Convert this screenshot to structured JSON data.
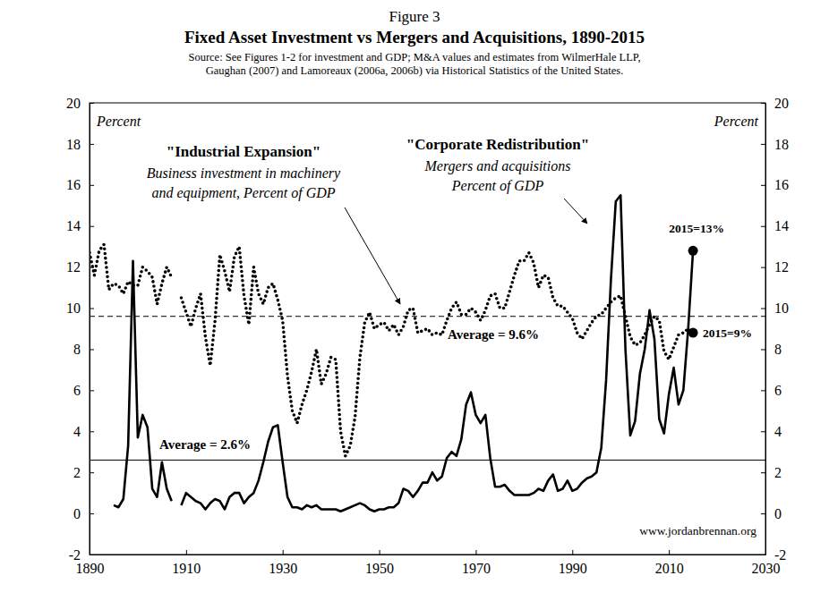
{
  "chart_data": {
    "type": "line",
    "figure": "Figure 3",
    "title": "Fixed Asset Investment vs Mergers and Acquisitions, 1890-2015",
    "source": [
      "Source: See Figures 1-2 for investment and GDP; M&A values and estimates from WilmerHale LLP,",
      "Gaughan (2007) and Lamoreaux (2006a, 2006b) via Historical Statistics of the United States."
    ],
    "y_label": "Percent",
    "y2_label": "Percent",
    "credit": "www.jordanbrennan.org",
    "annotations": [
      {
        "title": "\"Industrial Expansion\"",
        "lines": [
          "Business investment in machinery",
          "and equipment, Percent of GDP"
        ]
      },
      {
        "title": "\"Corporate Redistribution\"",
        "lines": [
          "Mergers and acquisitions",
          "Percent of GDP"
        ]
      }
    ],
    "xlim": [
      1890,
      2030
    ],
    "xticks": [
      1890,
      1910,
      1930,
      1950,
      1970,
      1990,
      2010,
      2030
    ],
    "ylim": [
      -2,
      20
    ],
    "yticks": [
      -2,
      0,
      2,
      4,
      6,
      8,
      10,
      12,
      14,
      16,
      18,
      20
    ],
    "y2lim": [
      -2,
      20
    ],
    "y2ticks": [
      -2,
      0,
      2,
      4,
      6,
      8,
      10,
      12,
      14,
      16,
      18,
      20
    ],
    "grid": false,
    "x": [
      1890,
      1891,
      1892,
      1893,
      1894,
      1895,
      1896,
      1897,
      1898,
      1899,
      1900,
      1901,
      1902,
      1903,
      1904,
      1905,
      1906,
      1907,
      1908,
      1909,
      1910,
      1911,
      1912,
      1913,
      1914,
      1915,
      1916,
      1917,
      1918,
      1919,
      1920,
      1921,
      1922,
      1923,
      1924,
      1925,
      1926,
      1927,
      1928,
      1929,
      1930,
      1931,
      1932,
      1933,
      1934,
      1935,
      1936,
      1937,
      1938,
      1939,
      1940,
      1941,
      1942,
      1943,
      1944,
      1945,
      1946,
      1947,
      1948,
      1949,
      1950,
      1951,
      1952,
      1953,
      1954,
      1955,
      1956,
      1957,
      1958,
      1959,
      1960,
      1961,
      1962,
      1963,
      1964,
      1965,
      1966,
      1967,
      1968,
      1969,
      1970,
      1971,
      1972,
      1973,
      1974,
      1975,
      1976,
      1977,
      1978,
      1979,
      1980,
      1981,
      1982,
      1983,
      1984,
      1985,
      1986,
      1987,
      1988,
      1989,
      1990,
      1991,
      1992,
      1993,
      1994,
      1995,
      1996,
      1997,
      1998,
      1999,
      2000,
      2001,
      2002,
      2003,
      2004,
      2005,
      2006,
      2007,
      2008,
      2009,
      2010,
      2011,
      2012,
      2013,
      2014,
      2015
    ],
    "series": [
      {
        "name": "Business investment in machinery and equipment",
        "color": "#000000",
        "line_style": "dotted",
        "average": 9.6,
        "average_label": "Average = 9.6%",
        "end_label": "2015=9%",
        "values": [
          12.7,
          11.6,
          12.8,
          13.1,
          10.9,
          11.2,
          11.1,
          10.7,
          11.3,
          11.1,
          11.1,
          12.0,
          11.8,
          11.5,
          10.2,
          11.2,
          12.0,
          11.5,
          null,
          10.5,
          9.8,
          9.1,
          10.0,
          10.7,
          8.6,
          7.2,
          9.4,
          12.6,
          11.8,
          10.8,
          12.5,
          13.0,
          10.6,
          9.2,
          12.0,
          10.7,
          10.2,
          11.0,
          11.2,
          10.4,
          9.4,
          6.7,
          5.0,
          4.4,
          5.3,
          6.0,
          6.9,
          8.0,
          6.3,
          6.8,
          7.6,
          7.5,
          4.0,
          2.8,
          3.3,
          4.7,
          7.6,
          9.3,
          9.8,
          9.0,
          9.2,
          9.3,
          8.9,
          9.2,
          8.7,
          9.1,
          9.9,
          10.0,
          8.8,
          8.9,
          9.0,
          8.7,
          8.8,
          8.7,
          9.4,
          10.0,
          10.3,
          9.7,
          9.7,
          10.0,
          9.8,
          9.4,
          9.9,
          10.6,
          10.7,
          10.0,
          10.0,
          10.8,
          11.6,
          12.3,
          12.3,
          12.7,
          12.2,
          11.0,
          11.6,
          11.5,
          10.5,
          10.1,
          10.1,
          9.8,
          9.5,
          8.8,
          8.5,
          8.9,
          9.3,
          9.6,
          9.7,
          10.0,
          10.3,
          10.5,
          10.6,
          9.6,
          8.6,
          8.2,
          8.3,
          8.7,
          9.2,
          9.6,
          9.4,
          7.9,
          7.5,
          8.1,
          8.7,
          8.8,
          9.0,
          8.8
        ]
      },
      {
        "name": "Mergers and acquisitions",
        "color": "#000000",
        "line_style": "solid",
        "average": 2.6,
        "average_label": "Average = 2.6%",
        "end_label": "2015=13%",
        "values": [
          null,
          null,
          null,
          null,
          null,
          0.4,
          0.3,
          0.7,
          3.3,
          12.3,
          3.7,
          4.8,
          4.2,
          1.2,
          0.8,
          2.5,
          1.2,
          0.6,
          null,
          0.4,
          1.0,
          0.8,
          0.6,
          0.5,
          0.2,
          0.5,
          0.7,
          0.6,
          0.2,
          0.8,
          1.0,
          1.0,
          0.5,
          0.8,
          1.0,
          1.6,
          2.5,
          3.5,
          4.2,
          4.3,
          2.5,
          0.8,
          0.3,
          0.3,
          0.2,
          0.4,
          0.3,
          0.4,
          0.2,
          0.2,
          0.2,
          0.2,
          0.1,
          0.2,
          0.3,
          0.4,
          0.5,
          0.4,
          0.2,
          0.1,
          0.2,
          0.2,
          0.3,
          0.3,
          0.5,
          1.2,
          1.1,
          0.8,
          1.1,
          1.5,
          1.5,
          2.0,
          1.6,
          1.8,
          2.7,
          3.0,
          2.8,
          3.6,
          5.3,
          5.9,
          4.8,
          4.4,
          4.8,
          2.7,
          1.3,
          1.3,
          1.4,
          1.1,
          0.9,
          0.9,
          0.9,
          0.9,
          1.0,
          1.2,
          1.1,
          1.6,
          1.9,
          1.1,
          1.2,
          1.6,
          1.1,
          1.2,
          1.5,
          1.7,
          1.8,
          2.0,
          3.2,
          6.5,
          11.4,
          15.2,
          15.5,
          8.0,
          3.8,
          4.5,
          6.8,
          8.0,
          9.9,
          8.5,
          4.6,
          3.9,
          5.8,
          7.1,
          5.3,
          6.0,
          9.0,
          12.8
        ]
      }
    ]
  }
}
